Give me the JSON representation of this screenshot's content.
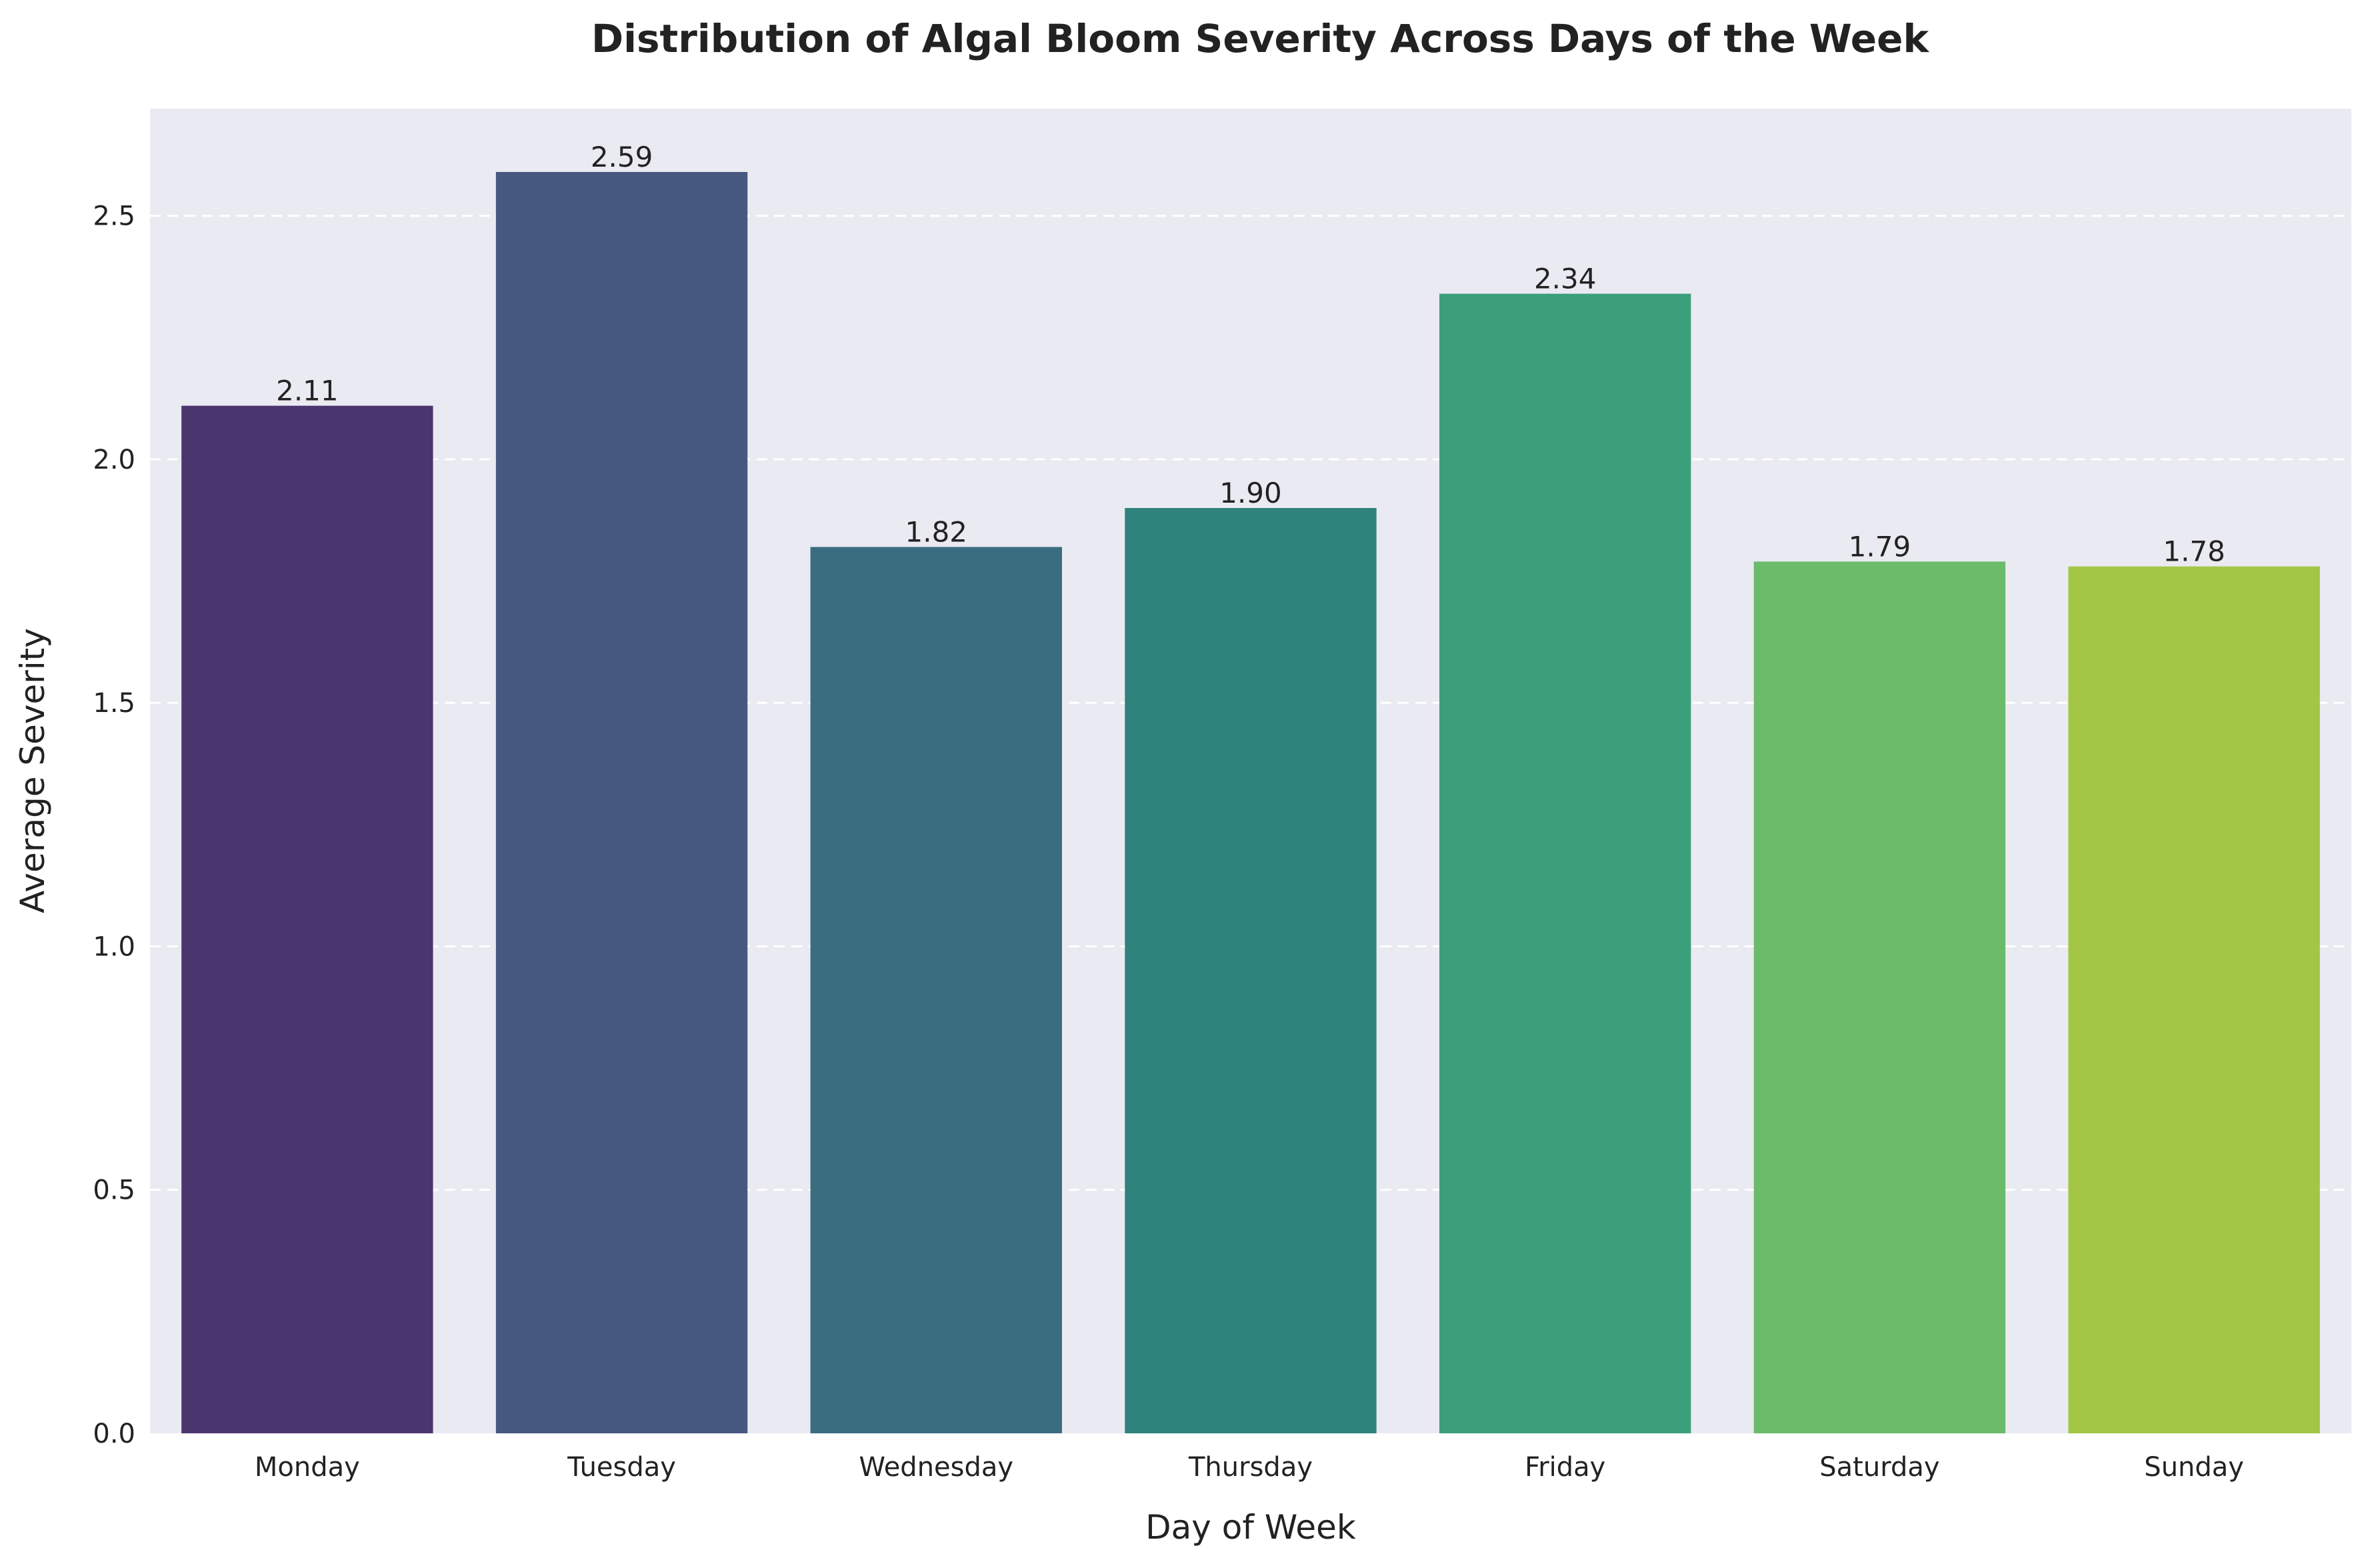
{
  "chart_data": {
    "type": "bar",
    "title": "Distribution of Algal Bloom Severity Across Days of the Week",
    "xlabel": "Day of Week",
    "ylabel": "Average Severity",
    "categories": [
      "Monday",
      "Tuesday",
      "Wednesday",
      "Thursday",
      "Friday",
      "Saturday",
      "Sunday"
    ],
    "values": [
      2.11,
      2.59,
      1.82,
      1.9,
      2.34,
      1.79,
      1.78
    ],
    "value_labels": [
      "2.11",
      "2.59",
      "1.82",
      "1.90",
      "2.34",
      "1.79",
      "1.78"
    ],
    "colors": [
      "#4b356f",
      "#465880",
      "#3b6d80",
      "#2e837c",
      "#3c9f7c",
      "#6bbb6a",
      "#a3c646"
    ],
    "ylim": [
      0,
      2.72
    ],
    "yticks": [
      0.0,
      0.5,
      1.0,
      1.5,
      2.0,
      2.5
    ],
    "ytick_labels": [
      "0.0",
      "0.5",
      "1.0",
      "1.5",
      "2.0",
      "2.5"
    ],
    "grid": "y-dashed",
    "background": "#eaeaf2"
  }
}
